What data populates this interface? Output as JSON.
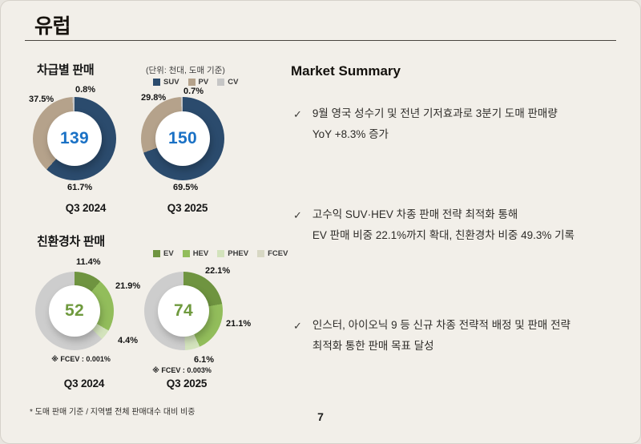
{
  "slide": {
    "title": "유럽",
    "page_number": "7",
    "footnote": "* 도매 판매 기준 / 지역별 전체 판매대수 대비 비중"
  },
  "summary": {
    "title": "Market Summary",
    "check_glyph": "✓",
    "bullets": [
      {
        "line1": "9월 영국 성수기 및 전년 기저효과로 3분기 도매 판매량",
        "line2": "YoY +8.3% 증가"
      },
      {
        "line1": "고수익 SUV·HEV 차종 판매 전략 최적화 통해",
        "line2": "EV 판매 비중 22.1%까지 확대, 친환경차 비중 49.3% 기록"
      },
      {
        "line1": "인스터, 아이오닉 9 등 신규 차종 전략적 배정 및 판매 전략",
        "line2": "최적화 통한 판매 목표 달성"
      }
    ]
  },
  "chart_data": [
    {
      "type": "pie",
      "title": "차급별 판매",
      "unit_note": "(단위: 천대, 도매 기준)",
      "legend": [
        "SUV",
        "PV",
        "CV"
      ],
      "colors": {
        "SUV": "#2b4b6d",
        "PV": "#b5a28b",
        "CV": "#c6c6c6",
        "center_value": "#1a71c5"
      },
      "donuts": [
        {
          "period": "Q3 2024",
          "total": "139",
          "slices": [
            {
              "name": "SUV",
              "pct": 61.7
            },
            {
              "name": "PV",
              "pct": 37.5
            },
            {
              "name": "CV",
              "pct": 0.8
            }
          ]
        },
        {
          "period": "Q3 2025",
          "total": "150",
          "slices": [
            {
              "name": "SUV",
              "pct": 69.5
            },
            {
              "name": "PV",
              "pct": 29.8
            },
            {
              "name": "CV",
              "pct": 0.7
            }
          ]
        }
      ]
    },
    {
      "type": "pie",
      "title": "친환경차 판매",
      "legend": [
        "EV",
        "HEV",
        "PHEV",
        "FCEV"
      ],
      "colors": {
        "EV": "#6f9440",
        "HEV": "#92bd5b",
        "PHEV": "#d3e3bc",
        "FCEV": "#d8d8c4",
        "rest": "#cdcdcd",
        "center_value": "#6f9a3e"
      },
      "donuts": [
        {
          "period": "Q3 2024",
          "total": "52",
          "fcev_note": "※ FCEV : 0.001%",
          "slices": [
            {
              "name": "EV",
              "pct": 11.4
            },
            {
              "name": "HEV",
              "pct": 21.9
            },
            {
              "name": "PHEV",
              "pct": 4.4
            },
            {
              "name": "FCEV",
              "pct": 0.001
            },
            {
              "name": "rest",
              "pct": 62.3
            }
          ]
        },
        {
          "period": "Q3 2025",
          "total": "74",
          "fcev_note": "※ FCEV : 0.003%",
          "slices": [
            {
              "name": "EV",
              "pct": 22.1
            },
            {
              "name": "HEV",
              "pct": 21.1
            },
            {
              "name": "PHEV",
              "pct": 6.1
            },
            {
              "name": "FCEV",
              "pct": 0.003
            },
            {
              "name": "rest",
              "pct": 50.7
            }
          ]
        }
      ]
    }
  ]
}
